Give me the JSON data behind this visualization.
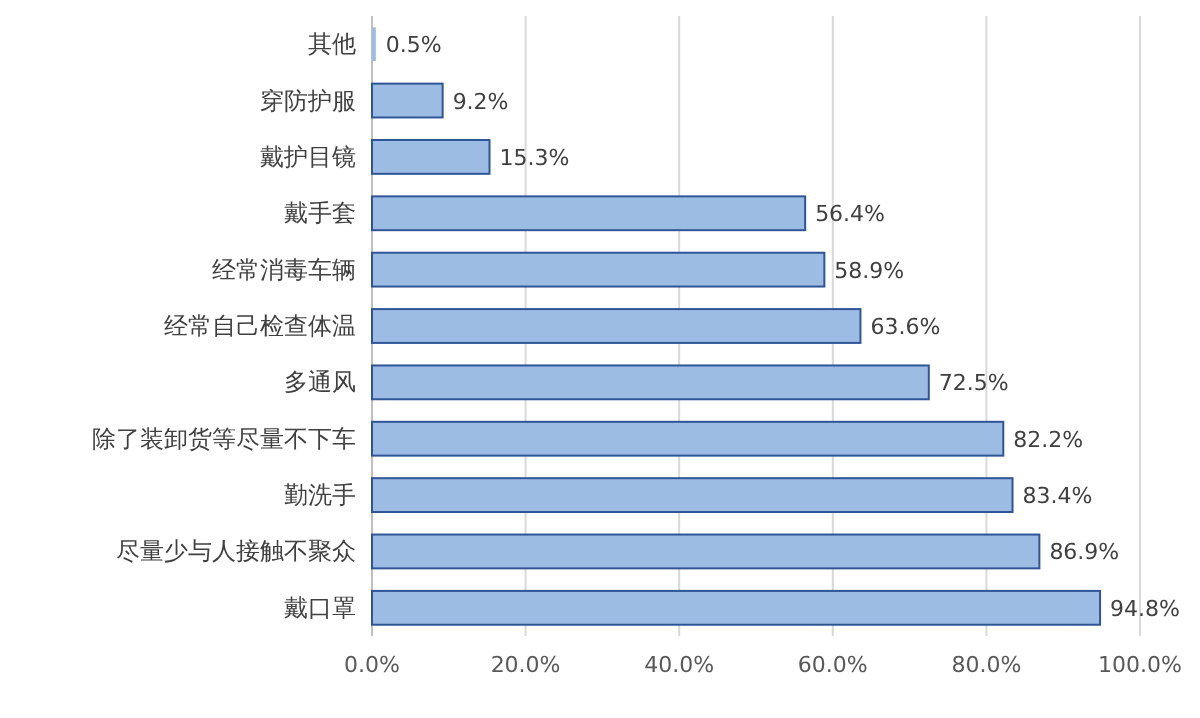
{
  "chart_data": {
    "type": "bar",
    "orientation": "horizontal",
    "categories": [
      "其他",
      "穿防护服",
      "戴护目镜",
      "戴手套",
      "经常消毒车辆",
      "经常自己检查体温",
      "多通风",
      "除了装卸货等尽量不下车",
      "勤洗手",
      "尽量少与人接触不聚众",
      "戴口罩"
    ],
    "values": [
      0.5,
      9.2,
      15.3,
      56.4,
      58.9,
      63.6,
      72.5,
      82.2,
      83.4,
      86.9,
      94.8
    ],
    "value_labels": [
      "0.5%",
      "9.2%",
      "15.3%",
      "56.4%",
      "58.9%",
      "63.6%",
      "72.5%",
      "82.2%",
      "83.4%",
      "86.9%",
      "94.8%"
    ],
    "color": "#9dbce4",
    "xlim": [
      0,
      100
    ],
    "xticks": [
      {
        "value": 0,
        "label": "0.0%"
      },
      {
        "value": 20,
        "label": "20.0%"
      },
      {
        "value": 40,
        "label": "40.0%"
      },
      {
        "value": 60,
        "label": "60.0%"
      },
      {
        "value": 80,
        "label": "80.0%"
      },
      {
        "value": 100,
        "label": "100.0%"
      }
    ],
    "grid": "x"
  }
}
